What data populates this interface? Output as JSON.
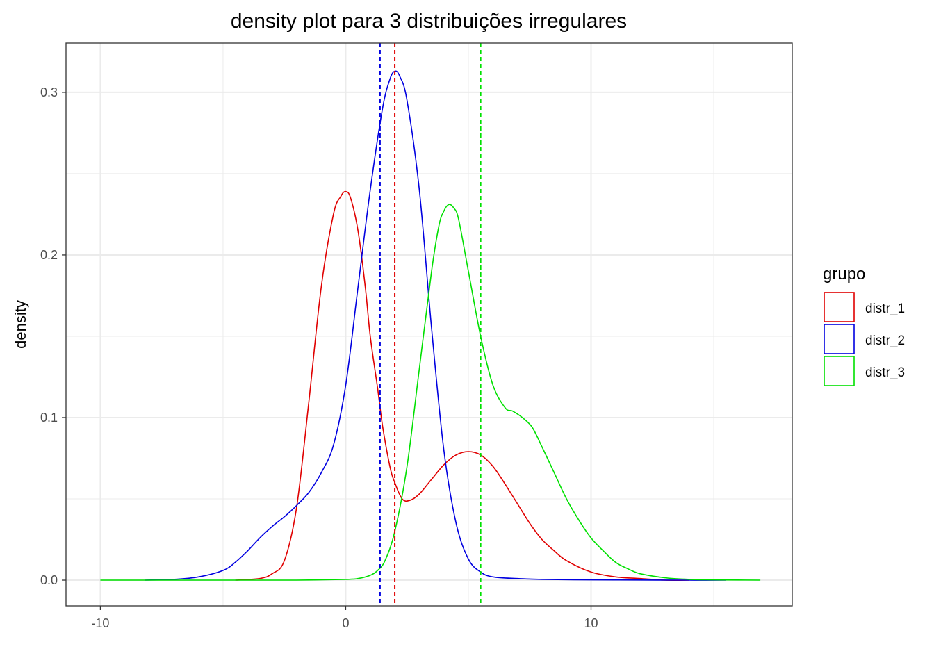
{
  "chart_data": {
    "type": "line",
    "title": "density plot para 3 distribuições irregulares",
    "xlabel": "",
    "ylabel": "density",
    "xlim": [
      -11.4,
      18.2
    ],
    "ylim": [
      -0.0158,
      0.3303
    ],
    "x_ticks": [
      -10,
      0,
      10
    ],
    "x_tick_labels": [
      "-10",
      "0",
      "10"
    ],
    "y_ticks": [
      0.0,
      0.1,
      0.2,
      0.3
    ],
    "y_tick_labels": [
      "0.0",
      "0.1",
      "0.2",
      "0.3"
    ],
    "x_minor_ticks": [
      -5,
      5,
      15
    ],
    "y_minor_ticks": [
      0.05,
      0.15,
      0.25
    ],
    "grid": true,
    "legend": {
      "title": "grupo",
      "placement": "right",
      "entries": [
        "distr_1",
        "distr_2",
        "distr_3"
      ]
    },
    "series": [
      {
        "name": "distr_1",
        "color": "#e00000",
        "mean": 2.0,
        "x": [
          -4.5,
          -3.5,
          -3.0,
          -2.5,
          -2.0,
          -1.5,
          -1.0,
          -0.5,
          -0.2,
          0.0,
          0.2,
          0.5,
          0.8,
          1.0,
          1.3,
          1.5,
          1.8,
          2.0,
          2.3,
          2.6,
          3.0,
          3.5,
          4.0,
          4.5,
          5.0,
          5.5,
          6.0,
          6.5,
          7.0,
          7.5,
          8.0,
          8.5,
          9.0,
          10.0,
          11.0,
          12.0,
          13.0,
          14.0
        ],
        "y": [
          0.0,
          0.001,
          0.004,
          0.012,
          0.045,
          0.11,
          0.18,
          0.225,
          0.236,
          0.239,
          0.235,
          0.215,
          0.18,
          0.15,
          0.118,
          0.095,
          0.07,
          0.06,
          0.05,
          0.049,
          0.053,
          0.062,
          0.071,
          0.077,
          0.079,
          0.077,
          0.07,
          0.059,
          0.047,
          0.035,
          0.025,
          0.018,
          0.012,
          0.005,
          0.002,
          0.001,
          0.0,
          0.0
        ]
      },
      {
        "name": "distr_2",
        "color": "#0000e0",
        "mean": 1.4,
        "x": [
          -8.2,
          -7.0,
          -6.0,
          -5.0,
          -4.5,
          -4.0,
          -3.5,
          -3.0,
          -2.5,
          -2.0,
          -1.5,
          -1.0,
          -0.5,
          0.0,
          0.5,
          1.0,
          1.5,
          1.8,
          2.0,
          2.2,
          2.5,
          3.0,
          3.5,
          4.0,
          4.5,
          5.0,
          5.5,
          6.0,
          7.0,
          8.0,
          10.0,
          12.0,
          14.0,
          15.5
        ],
        "y": [
          0.0,
          0.0005,
          0.002,
          0.006,
          0.011,
          0.018,
          0.026,
          0.033,
          0.039,
          0.046,
          0.054,
          0.066,
          0.083,
          0.12,
          0.18,
          0.24,
          0.29,
          0.308,
          0.313,
          0.31,
          0.295,
          0.24,
          0.155,
          0.08,
          0.035,
          0.013,
          0.005,
          0.002,
          0.001,
          0.0005,
          0.0002,
          0.0001,
          0.0,
          0.0
        ]
      },
      {
        "name": "distr_3",
        "color": "#00e000",
        "mean": 5.5,
        "x": [
          -10.0,
          -6.0,
          -4.0,
          -2.0,
          0.0,
          0.5,
          1.0,
          1.3,
          1.6,
          2.0,
          2.5,
          3.0,
          3.5,
          3.8,
          4.0,
          4.2,
          4.4,
          4.6,
          5.0,
          5.5,
          6.0,
          6.5,
          6.8,
          7.2,
          7.6,
          8.0,
          8.5,
          9.0,
          9.5,
          10.0,
          10.5,
          11.0,
          11.5,
          12.0,
          13.0,
          14.0,
          15.0,
          16.0,
          16.9
        ],
        "y": [
          0.0,
          0.0,
          0.0,
          0.0,
          0.0005,
          0.001,
          0.003,
          0.006,
          0.012,
          0.03,
          0.07,
          0.13,
          0.19,
          0.218,
          0.227,
          0.231,
          0.229,
          0.222,
          0.19,
          0.15,
          0.12,
          0.106,
          0.104,
          0.1,
          0.094,
          0.082,
          0.066,
          0.05,
          0.037,
          0.026,
          0.018,
          0.011,
          0.007,
          0.004,
          0.0015,
          0.0005,
          0.0002,
          0.0001,
          0.0
        ]
      }
    ]
  }
}
